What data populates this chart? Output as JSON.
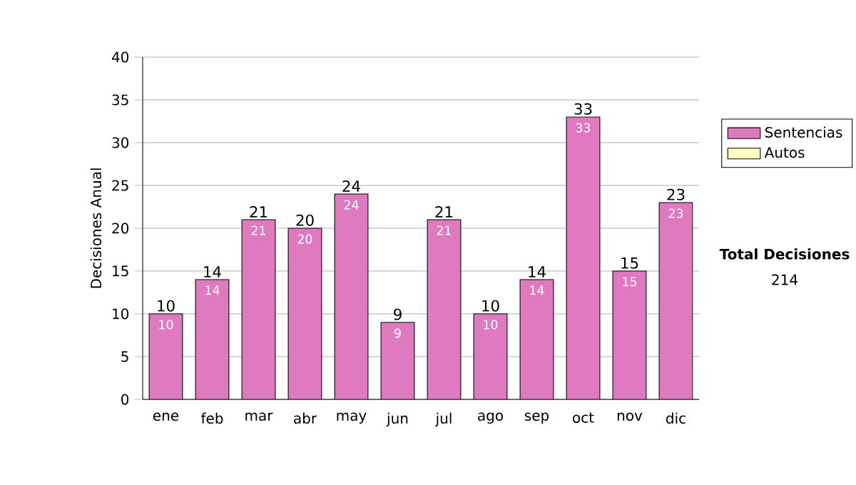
{
  "chart_data": {
    "type": "bar",
    "ylabel": "Decisiones Anual",
    "categories": [
      "ene",
      "feb",
      "mar",
      "abr",
      "may",
      "jun",
      "jul",
      "ago",
      "sep",
      "oct",
      "nov",
      "dic"
    ],
    "series": [
      {
        "name": "Sentencias",
        "color": "#e07ac0",
        "values": [
          10,
          14,
          21,
          20,
          24,
          9,
          21,
          10,
          14,
          33,
          15,
          23
        ]
      },
      {
        "name": "Autos",
        "color": "#ffffc0",
        "values": [
          null,
          null,
          null,
          null,
          null,
          null,
          null,
          null,
          null,
          null,
          null,
          null
        ]
      }
    ],
    "totals": [
      "10",
      "14",
      "21",
      "20",
      "24",
      "9",
      "21",
      "10",
      "14",
      "33",
      "15",
      "23"
    ],
    "data_labels": true,
    "ylim": [
      0,
      40
    ],
    "yticks": [
      0,
      5,
      10,
      15,
      20,
      25,
      30,
      35,
      40
    ],
    "grid": "y",
    "legend": "right",
    "annotations": [
      "Total Decisiones",
      "214"
    ]
  }
}
